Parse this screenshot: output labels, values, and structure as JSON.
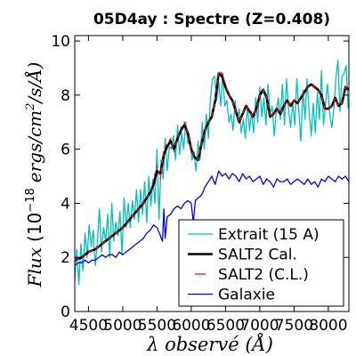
{
  "chart_data": {
    "type": "line",
    "title": "05D4ay : Spectre (Z=0.408)",
    "xlabel": "λ observé (Å)",
    "ylabel": "Flux (10^−18 ergs/cm²/s/Å)",
    "ylabel_parts": {
      "flux": "Flux",
      "open": "(10",
      "exp": "−18",
      "units": "ergs/cm",
      "sq": "2",
      "tail": "/s/Å)"
    },
    "xlim": [
      4300,
      8300
    ],
    "ylim": [
      0,
      10.2
    ],
    "xticks": [
      4500,
      5000,
      5500,
      6000,
      6500,
      7000,
      7500,
      8000
    ],
    "yticks": [
      0,
      2,
      4,
      6,
      8,
      10
    ],
    "grid": false,
    "legend_position": "lower-right",
    "series": [
      {
        "name": "Extrait (15 A)",
        "color": "#00bfbf",
        "style": "thin",
        "x": [
          4300,
          4330,
          4360,
          4390,
          4420,
          4450,
          4480,
          4510,
          4540,
          4570,
          4600,
          4630,
          4660,
          4690,
          4720,
          4750,
          4780,
          4810,
          4840,
          4870,
          4900,
          4930,
          4960,
          4990,
          5020,
          5050,
          5080,
          5110,
          5140,
          5170,
          5200,
          5230,
          5260,
          5290,
          5320,
          5350,
          5380,
          5410,
          5440,
          5470,
          5500,
          5530,
          5560,
          5590,
          5620,
          5650,
          5680,
          5710,
          5740,
          5770,
          5800,
          5830,
          5860,
          5890,
          5920,
          5950,
          5980,
          6010,
          6040,
          6070,
          6100,
          6130,
          6160,
          6190,
          6220,
          6250,
          6280,
          6310,
          6340,
          6370,
          6400,
          6430,
          6460,
          6490,
          6520,
          6550,
          6580,
          6610,
          6640,
          6670,
          6700,
          6730,
          6760,
          6790,
          6820,
          6850,
          6880,
          6910,
          6940,
          6970,
          7000,
          7030,
          7060,
          7090,
          7120,
          7150,
          7180,
          7210,
          7240,
          7270,
          7300,
          7330,
          7360,
          7390,
          7420,
          7450,
          7480,
          7510,
          7540,
          7570,
          7600,
          7630,
          7660,
          7690,
          7720,
          7750,
          7780,
          7810,
          7840,
          7870,
          7900,
          7930,
          7960,
          7990,
          8020,
          8050,
          8080,
          8110,
          8140,
          8170,
          8200,
          8230,
          8260,
          8290
        ],
        "y": [
          1.2,
          2.3,
          1.0,
          2.5,
          1.5,
          2.9,
          2.0,
          3.2,
          2.4,
          3.0,
          1.7,
          2.6,
          3.8,
          2.2,
          3.1,
          2.6,
          3.6,
          2.0,
          4.0,
          2.6,
          3.3,
          2.8,
          3.7,
          2.1,
          4.2,
          3.1,
          4.0,
          3.1,
          4.1,
          3.4,
          4.5,
          3.3,
          4.5,
          3.6,
          4.8,
          3.3,
          5.0,
          3.9,
          4.9,
          4.0,
          6.0,
          3.4,
          5.6,
          4.9,
          6.4,
          5.2,
          6.1,
          6.0,
          6.5,
          5.6,
          6.9,
          5.8,
          6.6,
          6.0,
          7.0,
          6.2,
          6.4,
          5.6,
          5.9,
          5.2,
          6.3,
          5.6,
          7.0,
          6.0,
          7.3,
          6.4,
          7.9,
          8.6,
          8.7,
          7.8,
          8.5,
          7.6,
          8.8,
          7.6,
          7.8,
          7.0,
          7.3,
          6.7,
          7.8,
          7.1,
          7.5,
          6.6,
          7.1,
          6.4,
          7.6,
          6.7,
          7.4,
          6.6,
          7.9,
          7.0,
          8.3,
          7.2,
          7.9,
          6.9,
          8.4,
          7.3,
          7.6,
          6.5,
          7.4,
          7.9,
          7.1,
          8.4,
          6.9,
          8.6,
          7.5,
          6.8,
          7.7,
          6.9,
          8.6,
          7.4,
          6.3,
          8.2,
          7.1,
          8.6,
          7.4,
          6.5,
          7.7,
          6.6,
          8.1,
          7.1,
          8.9,
          6.9,
          7.7,
          8.4,
          7.3,
          6.8,
          7.5,
          8.6,
          9.3,
          7.4,
          8.7,
          8.8,
          9.1,
          7.5
        ]
      },
      {
        "name": "SALT2 Cal.",
        "color": "#000000",
        "style": "thick",
        "x": [
          4300,
          4400,
          4500,
          4600,
          4700,
          4800,
          4900,
          5000,
          5100,
          5200,
          5300,
          5400,
          5450,
          5500,
          5550,
          5600,
          5650,
          5700,
          5750,
          5800,
          5850,
          5900,
          5950,
          6000,
          6050,
          6100,
          6150,
          6200,
          6250,
          6300,
          6350,
          6400,
          6450,
          6500,
          6550,
          6600,
          6650,
          6700,
          6750,
          6800,
          6850,
          6900,
          6950,
          7000,
          7050,
          7100,
          7150,
          7200,
          7250,
          7300,
          7350,
          7400,
          7450,
          7500,
          7550,
          7600,
          7650,
          7700,
          7750,
          7800,
          7850,
          7900,
          7950,
          8000,
          8050,
          8100,
          8150,
          8200,
          8250,
          8300
        ],
        "y": [
          1.9,
          2.0,
          2.2,
          2.3,
          2.5,
          2.7,
          2.9,
          3.1,
          3.4,
          3.7,
          4.0,
          4.4,
          4.7,
          5.2,
          5.1,
          5.8,
          6.1,
          6.3,
          6.0,
          6.4,
          6.7,
          6.9,
          6.6,
          6.0,
          5.7,
          5.6,
          6.2,
          6.7,
          7.0,
          7.2,
          7.8,
          8.8,
          8.7,
          8.3,
          8.0,
          7.8,
          7.4,
          7.0,
          7.3,
          7.6,
          7.4,
          7.2,
          7.5,
          8.0,
          8.2,
          7.9,
          7.2,
          7.3,
          7.5,
          7.3,
          7.6,
          7.8,
          7.6,
          7.8,
          7.7,
          7.9,
          8.1,
          8.3,
          8.4,
          8.3,
          8.2,
          8.0,
          7.5,
          7.5,
          7.6,
          7.9,
          7.6,
          7.7,
          8.3,
          8.2
        ]
      },
      {
        "name": "SALT2 (C.L.)",
        "color": "#e41a1c",
        "style": "dashed",
        "x": [
          4300,
          4400,
          4500,
          4600,
          4700,
          4800,
          4900,
          5000,
          5100,
          5200,
          5300,
          5400,
          5450,
          5500,
          5550,
          5600,
          5650,
          5700,
          5750,
          5800,
          5850,
          5900,
          5950,
          6000,
          6050,
          6100,
          6150,
          6200,
          6250,
          6300,
          6350,
          6400,
          6450,
          6500,
          6550,
          6600,
          6650,
          6700,
          6750,
          6800,
          6850,
          6900,
          6950,
          7000,
          7050,
          7100,
          7150,
          7200,
          7250,
          7300,
          7350,
          7400,
          7450,
          7500,
          7550,
          7600,
          7650,
          7700,
          7750,
          7800,
          7850,
          7900,
          7950,
          8000,
          8050,
          8100,
          8150,
          8200,
          8250,
          8300
        ],
        "y": [
          1.9,
          2.0,
          2.2,
          2.3,
          2.5,
          2.7,
          2.9,
          3.1,
          3.4,
          3.7,
          4.0,
          4.4,
          4.9,
          5.4,
          4.9,
          6.0,
          6.2,
          6.4,
          5.9,
          6.4,
          6.8,
          7.0,
          6.6,
          6.0,
          5.7,
          5.6,
          6.2,
          6.7,
          7.0,
          7.2,
          7.9,
          8.9,
          8.8,
          8.4,
          8.0,
          7.8,
          7.4,
          7.0,
          7.3,
          7.6,
          7.4,
          7.2,
          7.5,
          8.0,
          8.2,
          7.9,
          7.2,
          7.3,
          7.5,
          7.3,
          7.6,
          7.8,
          7.6,
          7.8,
          7.7,
          7.9,
          8.1,
          8.3,
          8.4,
          8.3,
          8.2,
          8.0,
          7.5,
          7.5,
          7.6,
          7.9,
          7.6,
          7.7,
          8.3,
          8.2
        ]
      },
      {
        "name": "Galaxie",
        "color": "#0000ff",
        "style": "thin",
        "x": [
          4300,
          4350,
          4400,
          4450,
          4500,
          4550,
          4600,
          4650,
          4700,
          4750,
          4800,
          4850,
          4900,
          4950,
          5000,
          5050,
          5100,
          5150,
          5200,
          5250,
          5300,
          5350,
          5400,
          5450,
          5500,
          5550,
          5580,
          5600,
          5620,
          5650,
          5700,
          5750,
          5800,
          5850,
          5900,
          5950,
          6000,
          6030,
          6060,
          6100,
          6150,
          6200,
          6250,
          6300,
          6350,
          6400,
          6450,
          6500,
          6550,
          6600,
          6650,
          6700,
          6750,
          6800,
          6850,
          6900,
          6950,
          7000,
          7050,
          7100,
          7150,
          7200,
          7250,
          7300,
          7350,
          7400,
          7450,
          7500,
          7550,
          7600,
          7650,
          7700,
          7750,
          7800,
          7850,
          7900,
          7950,
          8000,
          8050,
          8100,
          8150,
          8200,
          8250,
          8300
        ],
        "y": [
          1.7,
          1.8,
          1.8,
          1.9,
          1.8,
          1.9,
          1.9,
          2.0,
          2.1,
          2.0,
          2.1,
          2.1,
          2.0,
          2.2,
          2.1,
          2.2,
          2.3,
          2.4,
          2.5,
          2.6,
          2.7,
          2.9,
          3.0,
          3.2,
          3.1,
          2.8,
          2.6,
          3.8,
          2.7,
          3.5,
          3.6,
          3.8,
          3.9,
          3.8,
          4.0,
          4.1,
          4.0,
          3.3,
          4.1,
          4.2,
          4.3,
          4.6,
          4.8,
          5.0,
          4.7,
          5.2,
          5.0,
          5.1,
          4.9,
          5.1,
          5.0,
          4.8,
          5.1,
          4.9,
          5.0,
          4.8,
          4.9,
          5.0,
          4.7,
          4.9,
          4.8,
          4.6,
          4.9,
          4.8,
          4.8,
          4.9,
          4.7,
          4.8,
          4.9,
          4.8,
          4.7,
          4.9,
          4.7,
          4.8,
          4.6,
          4.9,
          4.8,
          5.0,
          4.9,
          4.8,
          5.0,
          4.9,
          5.0,
          4.8
        ]
      }
    ]
  }
}
